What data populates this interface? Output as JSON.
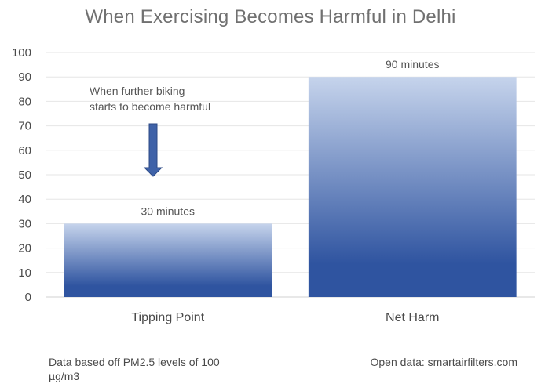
{
  "chart_data": {
    "type": "bar",
    "title": "When Exercising Becomes Harmful in Delhi",
    "categories": [
      "Tipping Point",
      "Net Harm"
    ],
    "values": [
      30,
      90
    ],
    "data_labels": [
      "30 minutes",
      "90 minutes"
    ],
    "xlabel": "",
    "ylabel": "",
    "ylim": [
      0,
      100
    ],
    "yticks": [
      0,
      10,
      20,
      30,
      40,
      50,
      60,
      70,
      80,
      90,
      100
    ],
    "grid": true,
    "legend": "none",
    "annotation": {
      "lines": [
        "When further biking",
        "starts to become harmful"
      ],
      "arrow": "down"
    },
    "colors": {
      "bar_bottom": "#2f54a0",
      "bar_top": "#c6d4ec",
      "arrow": "#3f62a8",
      "grid": "#e6e6e6"
    }
  },
  "footnotes": {
    "left": "Data based off PM2.5 levels of 100 µg/m3",
    "right": "Open data: smartairfilters.com"
  }
}
